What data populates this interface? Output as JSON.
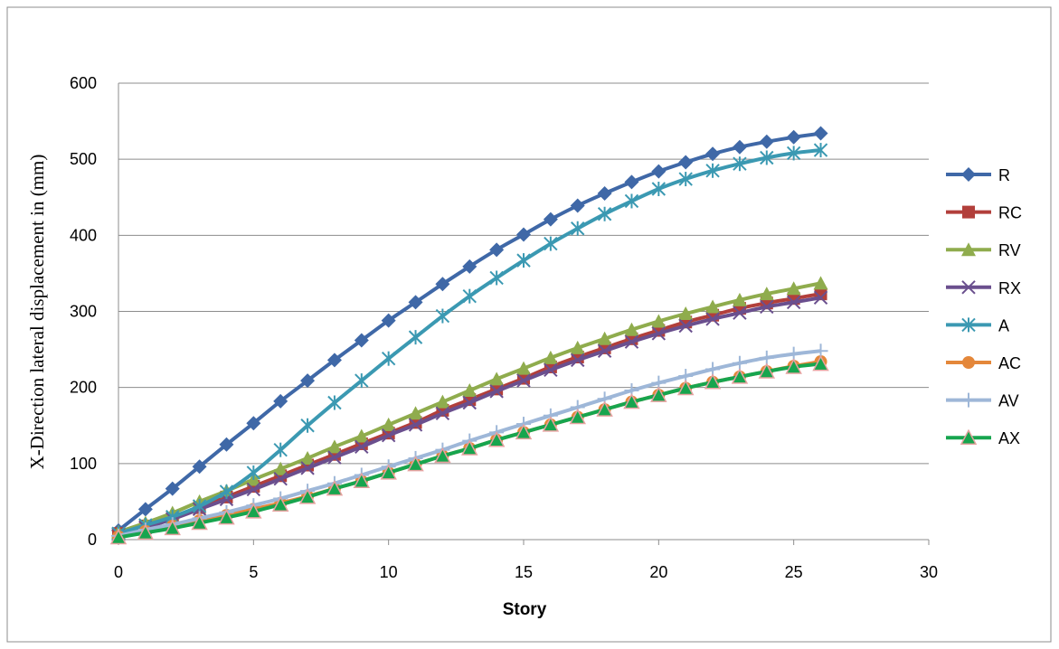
{
  "chart_data": {
    "type": "line",
    "title": "",
    "xlabel": "Story",
    "ylabel": "X-Direction lateral displacement in (mm)",
    "xlim": [
      0,
      30
    ],
    "ylim": [
      0,
      600
    ],
    "xticks": [
      0,
      5,
      10,
      15,
      20,
      25,
      30
    ],
    "yticks": [
      0,
      100,
      200,
      300,
      400,
      500,
      600
    ],
    "grid": "horizontal",
    "legend": "right",
    "x": [
      0,
      1,
      2,
      3,
      4,
      5,
      6,
      7,
      8,
      9,
      10,
      11,
      12,
      13,
      14,
      15,
      16,
      17,
      18,
      19,
      20,
      21,
      22,
      23,
      24,
      25,
      26
    ],
    "series": [
      {
        "name": "R",
        "color": "#3f68a7",
        "marker": "diamond",
        "values": [
          12,
          40,
          67,
          96,
          125,
          153,
          182,
          209,
          236,
          262,
          288,
          312,
          336,
          359,
          381,
          401,
          421,
          439,
          455,
          470,
          484,
          496,
          507,
          516,
          523,
          529,
          534
        ]
      },
      {
        "name": "RC",
        "color": "#b23f3b",
        "marker": "square",
        "values": [
          8,
          18,
          28,
          42,
          56,
          70,
          84,
          98,
          112,
          126,
          140,
          154,
          170,
          184,
          198,
          212,
          227,
          240,
          252,
          264,
          275,
          286,
          295,
          304,
          311,
          317,
          323
        ]
      },
      {
        "name": "RV",
        "color": "#8fac4d",
        "marker": "triangle",
        "values": [
          10,
          22,
          35,
          50,
          64,
          79,
          93,
          107,
          122,
          136,
          151,
          166,
          181,
          196,
          211,
          225,
          239,
          252,
          264,
          276,
          287,
          297,
          306,
          315,
          323,
          330,
          337
        ]
      },
      {
        "name": "RX",
        "color": "#6a4f8e",
        "marker": "x",
        "values": [
          7,
          16,
          27,
          40,
          53,
          66,
          80,
          94,
          108,
          122,
          137,
          151,
          166,
          180,
          195,
          209,
          223,
          236,
          248,
          260,
          271,
          281,
          290,
          298,
          306,
          312,
          318
        ]
      },
      {
        "name": "A",
        "color": "#3b99b2",
        "marker": "asterisk",
        "values": [
          8,
          19,
          30,
          44,
          63,
          88,
          118,
          150,
          180,
          209,
          238,
          266,
          294,
          320,
          344,
          367,
          389,
          409,
          428,
          445,
          461,
          474,
          485,
          494,
          502,
          508,
          512
        ]
      },
      {
        "name": "AC",
        "color": "#e4873a",
        "marker": "circle",
        "values": [
          4,
          11,
          18,
          25,
          32,
          40,
          48,
          57,
          67,
          77,
          88,
          99,
          110,
          120,
          131,
          141,
          151,
          161,
          171,
          181,
          190,
          199,
          207,
          214,
          221,
          228,
          234
        ]
      },
      {
        "name": "AV",
        "color": "#9eb7d8",
        "marker": "plus",
        "values": [
          5,
          13,
          20,
          28,
          36,
          45,
          54,
          64,
          74,
          85,
          96,
          107,
          118,
          130,
          141,
          152,
          163,
          174,
          185,
          196,
          206,
          215,
          224,
          232,
          239,
          244,
          248
        ]
      },
      {
        "name": "AX",
        "color": "#17a54e",
        "marker": "triangle-pink",
        "values": [
          3,
          9,
          15,
          22,
          29,
          37,
          46,
          56,
          67,
          77,
          88,
          99,
          110,
          120,
          131,
          141,
          151,
          161,
          171,
          181,
          190,
          199,
          207,
          214,
          221,
          227,
          231
        ]
      }
    ]
  }
}
